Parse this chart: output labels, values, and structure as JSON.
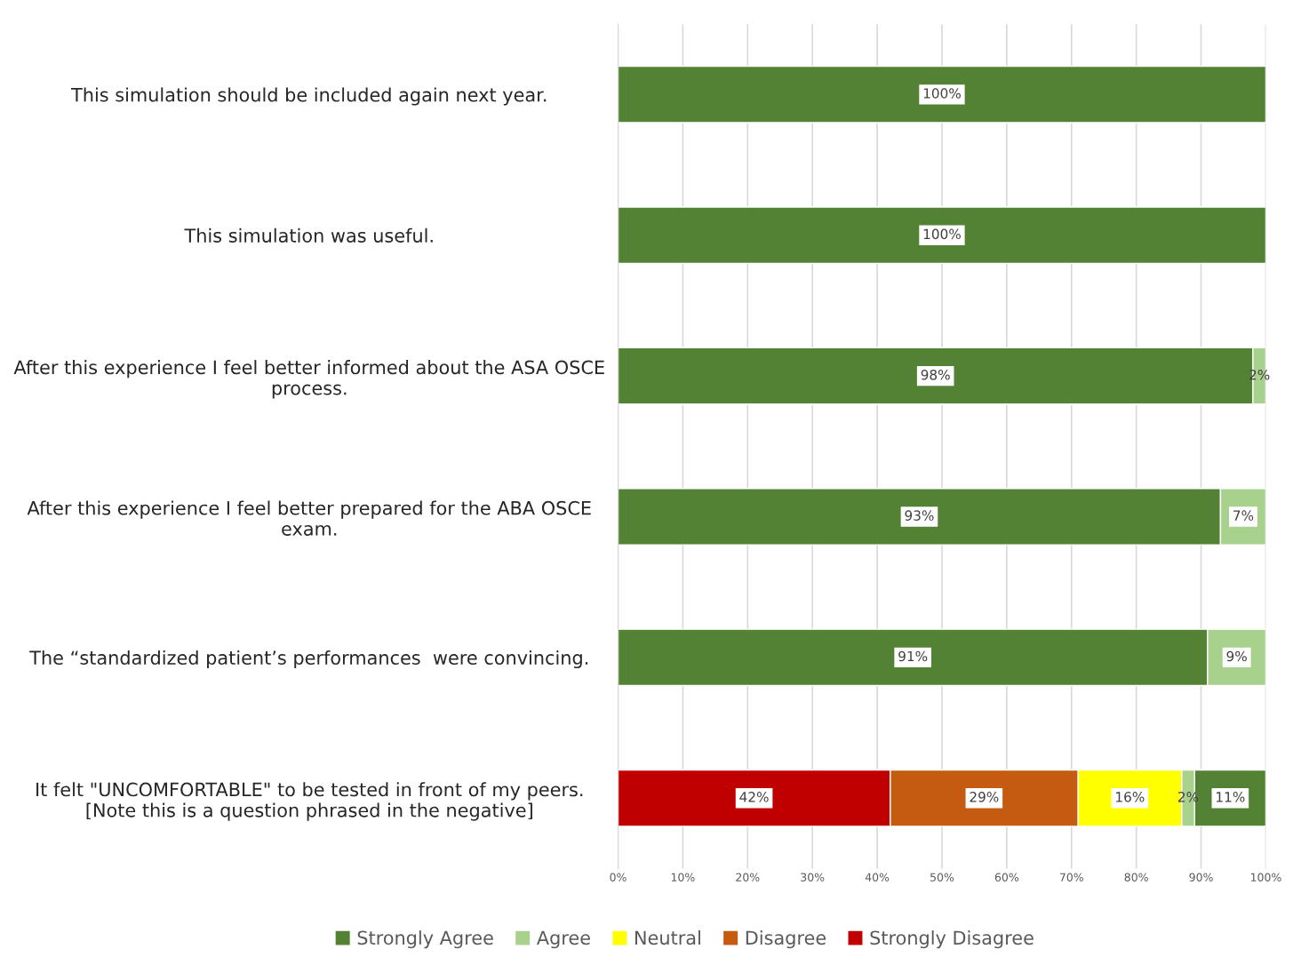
{
  "chart_data": {
    "type": "bar",
    "orientation": "horizontal",
    "categories": [
      "This simulation should be included again next year.",
      "This simulation was useful.",
      "After this experience I feel better informed about the ASA OSCE\nprocess.",
      "After this experience I feel better prepared for the ABA OSCE\nexam.",
      "The “standardized patient’s performances  were convincing.",
      "It felt \"UNCOMFORTABLE\" to be tested in front of my peers.\n[Note this is a question phrased in the negative]"
    ],
    "series": [
      {
        "name": "Strongly Agree",
        "color": "#548235",
        "values": [
          100,
          100,
          98,
          93,
          91,
          11
        ],
        "base": [
          0,
          0,
          0,
          0,
          0,
          89
        ],
        "value_labels": [
          "100%",
          "100%",
          "98%",
          "93%",
          "91%",
          "11%"
        ]
      },
      {
        "name": "Agree",
        "color": "#a9d18e",
        "values": [
          null,
          null,
          2,
          7,
          9,
          2
        ],
        "base": [
          null,
          null,
          98,
          93,
          91,
          87
        ],
        "value_labels": [
          null,
          null,
          "2%",
          "7%",
          "9%",
          "2%"
        ]
      },
      {
        "name": "Neutral",
        "color": "#ffff00",
        "values": [
          null,
          null,
          null,
          null,
          null,
          16
        ],
        "base": [
          null,
          null,
          null,
          null,
          null,
          71
        ],
        "value_labels": [
          null,
          null,
          null,
          null,
          null,
          "16%"
        ]
      },
      {
        "name": "Disagree",
        "color": "#c55a11",
        "values": [
          null,
          null,
          null,
          null,
          null,
          29
        ],
        "base": [
          null,
          null,
          null,
          null,
          null,
          42
        ],
        "value_labels": [
          null,
          null,
          null,
          null,
          null,
          "29%"
        ]
      },
      {
        "name": "Strongly Disagree",
        "color": "#c00000",
        "values": [
          null,
          null,
          null,
          null,
          null,
          42
        ],
        "base": [
          null,
          null,
          null,
          null,
          null,
          0
        ],
        "value_labels": [
          null,
          null,
          null,
          null,
          null,
          "42%"
        ]
      }
    ],
    "xlim": [
      0,
      100
    ],
    "xticks": [
      {
        "value": 0,
        "label": "0%"
      },
      {
        "value": 10,
        "label": "10%"
      },
      {
        "value": 20,
        "label": "20%"
      },
      {
        "value": 30,
        "label": "30%"
      },
      {
        "value": 40,
        "label": "40%"
      },
      {
        "value": 50,
        "label": "50%"
      },
      {
        "value": 60,
        "label": "60%"
      },
      {
        "value": 70,
        "label": "70%"
      },
      {
        "value": 80,
        "label": "80%"
      },
      {
        "value": 90,
        "label": "90%"
      },
      {
        "value": 100,
        "label": "100%"
      }
    ],
    "grid": "x",
    "legend": "bottom"
  }
}
